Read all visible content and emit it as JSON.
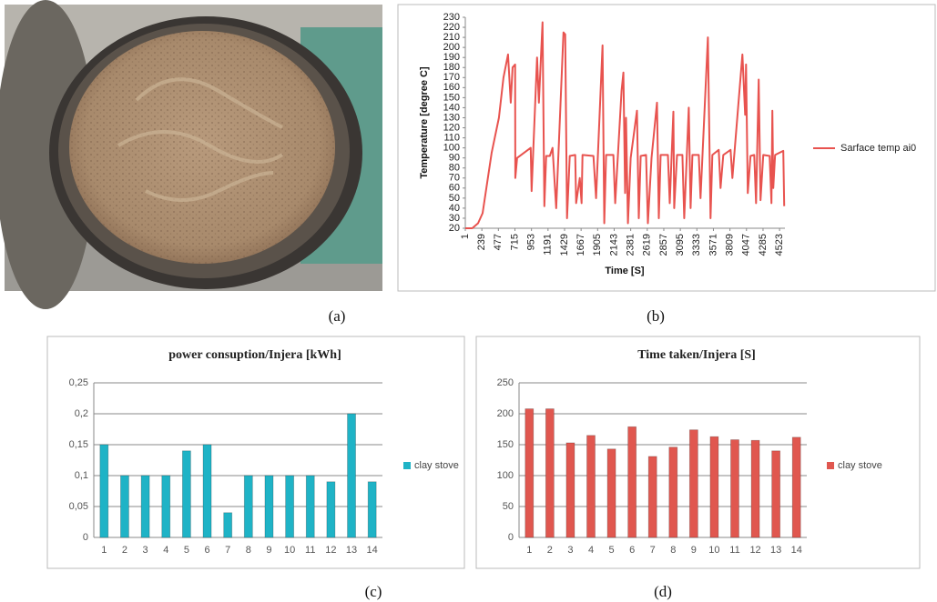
{
  "photo": {
    "caption": "(a)"
  },
  "chart_data": [
    {
      "type": "line",
      "caption": "(b)",
      "x_label": "Time [S]",
      "y_label": "Temperature [degree C]",
      "x": [
        1,
        100,
        184,
        250,
        380,
        485,
        550,
        615,
        655,
        681,
        718,
        720,
        746,
        942,
        955,
        1034,
        1060,
        1112,
        1138,
        1164,
        1217,
        1256,
        1308,
        1413,
        1439,
        1465,
        1504,
        1583,
        1596,
        1648,
        1674,
        1687,
        1844,
        1883,
        1975,
        2001,
        2027,
        2131,
        2158,
        2249,
        2275,
        2301,
        2314,
        2341,
        2380,
        2471,
        2497,
        2524,
        2602,
        2628,
        2681,
        2759,
        2785,
        2811,
        2916,
        2942,
        2995,
        3007,
        3047,
        3125,
        3151,
        3216,
        3243,
        3269,
        3360,
        3386,
        3491,
        3530,
        3556,
        3648,
        3674,
        3713,
        3818,
        3844,
        3988,
        4027,
        4040,
        4066,
        4105,
        4158,
        4184,
        4223,
        4249,
        4288,
        4380,
        4406,
        4419,
        4432,
        4458,
        4576,
        4589
      ],
      "series": [
        {
          "name": "Sarface temp ai0",
          "color": "#e8534f",
          "values": [
            20,
            20,
            25,
            35,
            95,
            130,
            170,
            193,
            145,
            180,
            183,
            70,
            90,
            100,
            57,
            190,
            145,
            225,
            42,
            92,
            92,
            100,
            40,
            215,
            213,
            30,
            92,
            93,
            45,
            70,
            45,
            93,
            92,
            50,
            202,
            25,
            93,
            93,
            45,
            157,
            175,
            55,
            130,
            25,
            90,
            137,
            30,
            92,
            93,
            25,
            90,
            145,
            30,
            93,
            93,
            45,
            136,
            40,
            93,
            93,
            30,
            140,
            40,
            93,
            93,
            50,
            210,
            30,
            93,
            98,
            60,
            93,
            98,
            70,
            193,
            133,
            183,
            55,
            92,
            93,
            45,
            168,
            48,
            93,
            92,
            45,
            137,
            60,
            93,
            97,
            42
          ]
        }
      ],
      "xlim": [
        1,
        4600
      ],
      "xticks": [
        1,
        239,
        477,
        715,
        953,
        1191,
        1429,
        1667,
        1905,
        2143,
        2381,
        2619,
        2857,
        3095,
        3333,
        3571,
        3809,
        4047,
        4285,
        4523
      ],
      "ylim": [
        20,
        230
      ],
      "yticks": [
        20,
        30,
        40,
        50,
        60,
        70,
        80,
        90,
        100,
        110,
        120,
        130,
        140,
        150,
        160,
        170,
        180,
        190,
        200,
        210,
        220,
        230
      ],
      "grid": false,
      "legend": "right"
    },
    {
      "type": "bar",
      "caption": "(c)",
      "title": "power consuption/Injera  [kWh]",
      "categories": [
        "1",
        "2",
        "3",
        "4",
        "5",
        "6",
        "7",
        "8",
        "9",
        "10",
        "11",
        "12",
        "13",
        "14"
      ],
      "series": [
        {
          "name": "clay stove",
          "color": "#1fb3c6",
          "values": [
            0.15,
            0.1,
            0.1,
            0.1,
            0.14,
            0.15,
            0.04,
            0.1,
            0.1,
            0.1,
            0.1,
            0.09,
            0.2,
            0.09
          ]
        }
      ],
      "ylim": [
        0,
        0.25
      ],
      "yticks": [
        0,
        {
          "value": 0.05,
          "label": "0,05"
        },
        {
          "value": 0.1,
          "label": "0,1"
        },
        {
          "value": 0.15,
          "label": "0,15"
        },
        {
          "value": 0.2,
          "label": "0,2"
        },
        {
          "value": 0.25,
          "label": "0,25"
        }
      ],
      "grid": true,
      "legend": "right"
    },
    {
      "type": "bar",
      "caption": "(d)",
      "title": "Time taken/Injera  [S]",
      "categories": [
        "1",
        "2",
        "3",
        "4",
        "5",
        "6",
        "7",
        "8",
        "9",
        "10",
        "11",
        "12",
        "13",
        "14"
      ],
      "series": [
        {
          "name": "clay stove",
          "color": "#e0574f",
          "values": [
            208,
            208,
            153,
            165,
            143,
            179,
            131,
            146,
            174,
            163,
            158,
            157,
            140,
            162
          ]
        }
      ],
      "ylim": [
        0,
        250
      ],
      "yticks": [
        0,
        50,
        100,
        150,
        200,
        250
      ],
      "grid": true,
      "legend": "right"
    }
  ]
}
